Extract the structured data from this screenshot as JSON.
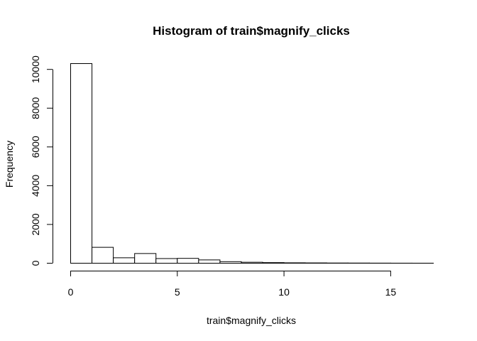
{
  "chart_data": {
    "type": "bar",
    "title": "Histogram of train$magnify_clicks",
    "xlabel": "train$magnify_clicks",
    "ylabel": "Frequency",
    "bin_edges": [
      0,
      1,
      2,
      3,
      4,
      5,
      6,
      7,
      8,
      9,
      10,
      11,
      12,
      13,
      14,
      15,
      16,
      17
    ],
    "values": [
      10300,
      820,
      280,
      500,
      240,
      250,
      170,
      80,
      50,
      30,
      20,
      15,
      10,
      8,
      5,
      3,
      2
    ],
    "xlim": [
      0,
      17
    ],
    "ylim": [
      0,
      10300
    ],
    "xticks": [
      0,
      5,
      10,
      15
    ],
    "xtick_labels": [
      "0",
      "5",
      "10",
      "15"
    ],
    "yticks": [
      0,
      2000,
      4000,
      6000,
      8000,
      10000
    ],
    "ytick_labels": [
      "0",
      "2000",
      "4000",
      "6000",
      "8000",
      "10000"
    ],
    "grid": false,
    "legend": "none",
    "bar_fill": "#ffffff",
    "bar_stroke": "#000000"
  }
}
